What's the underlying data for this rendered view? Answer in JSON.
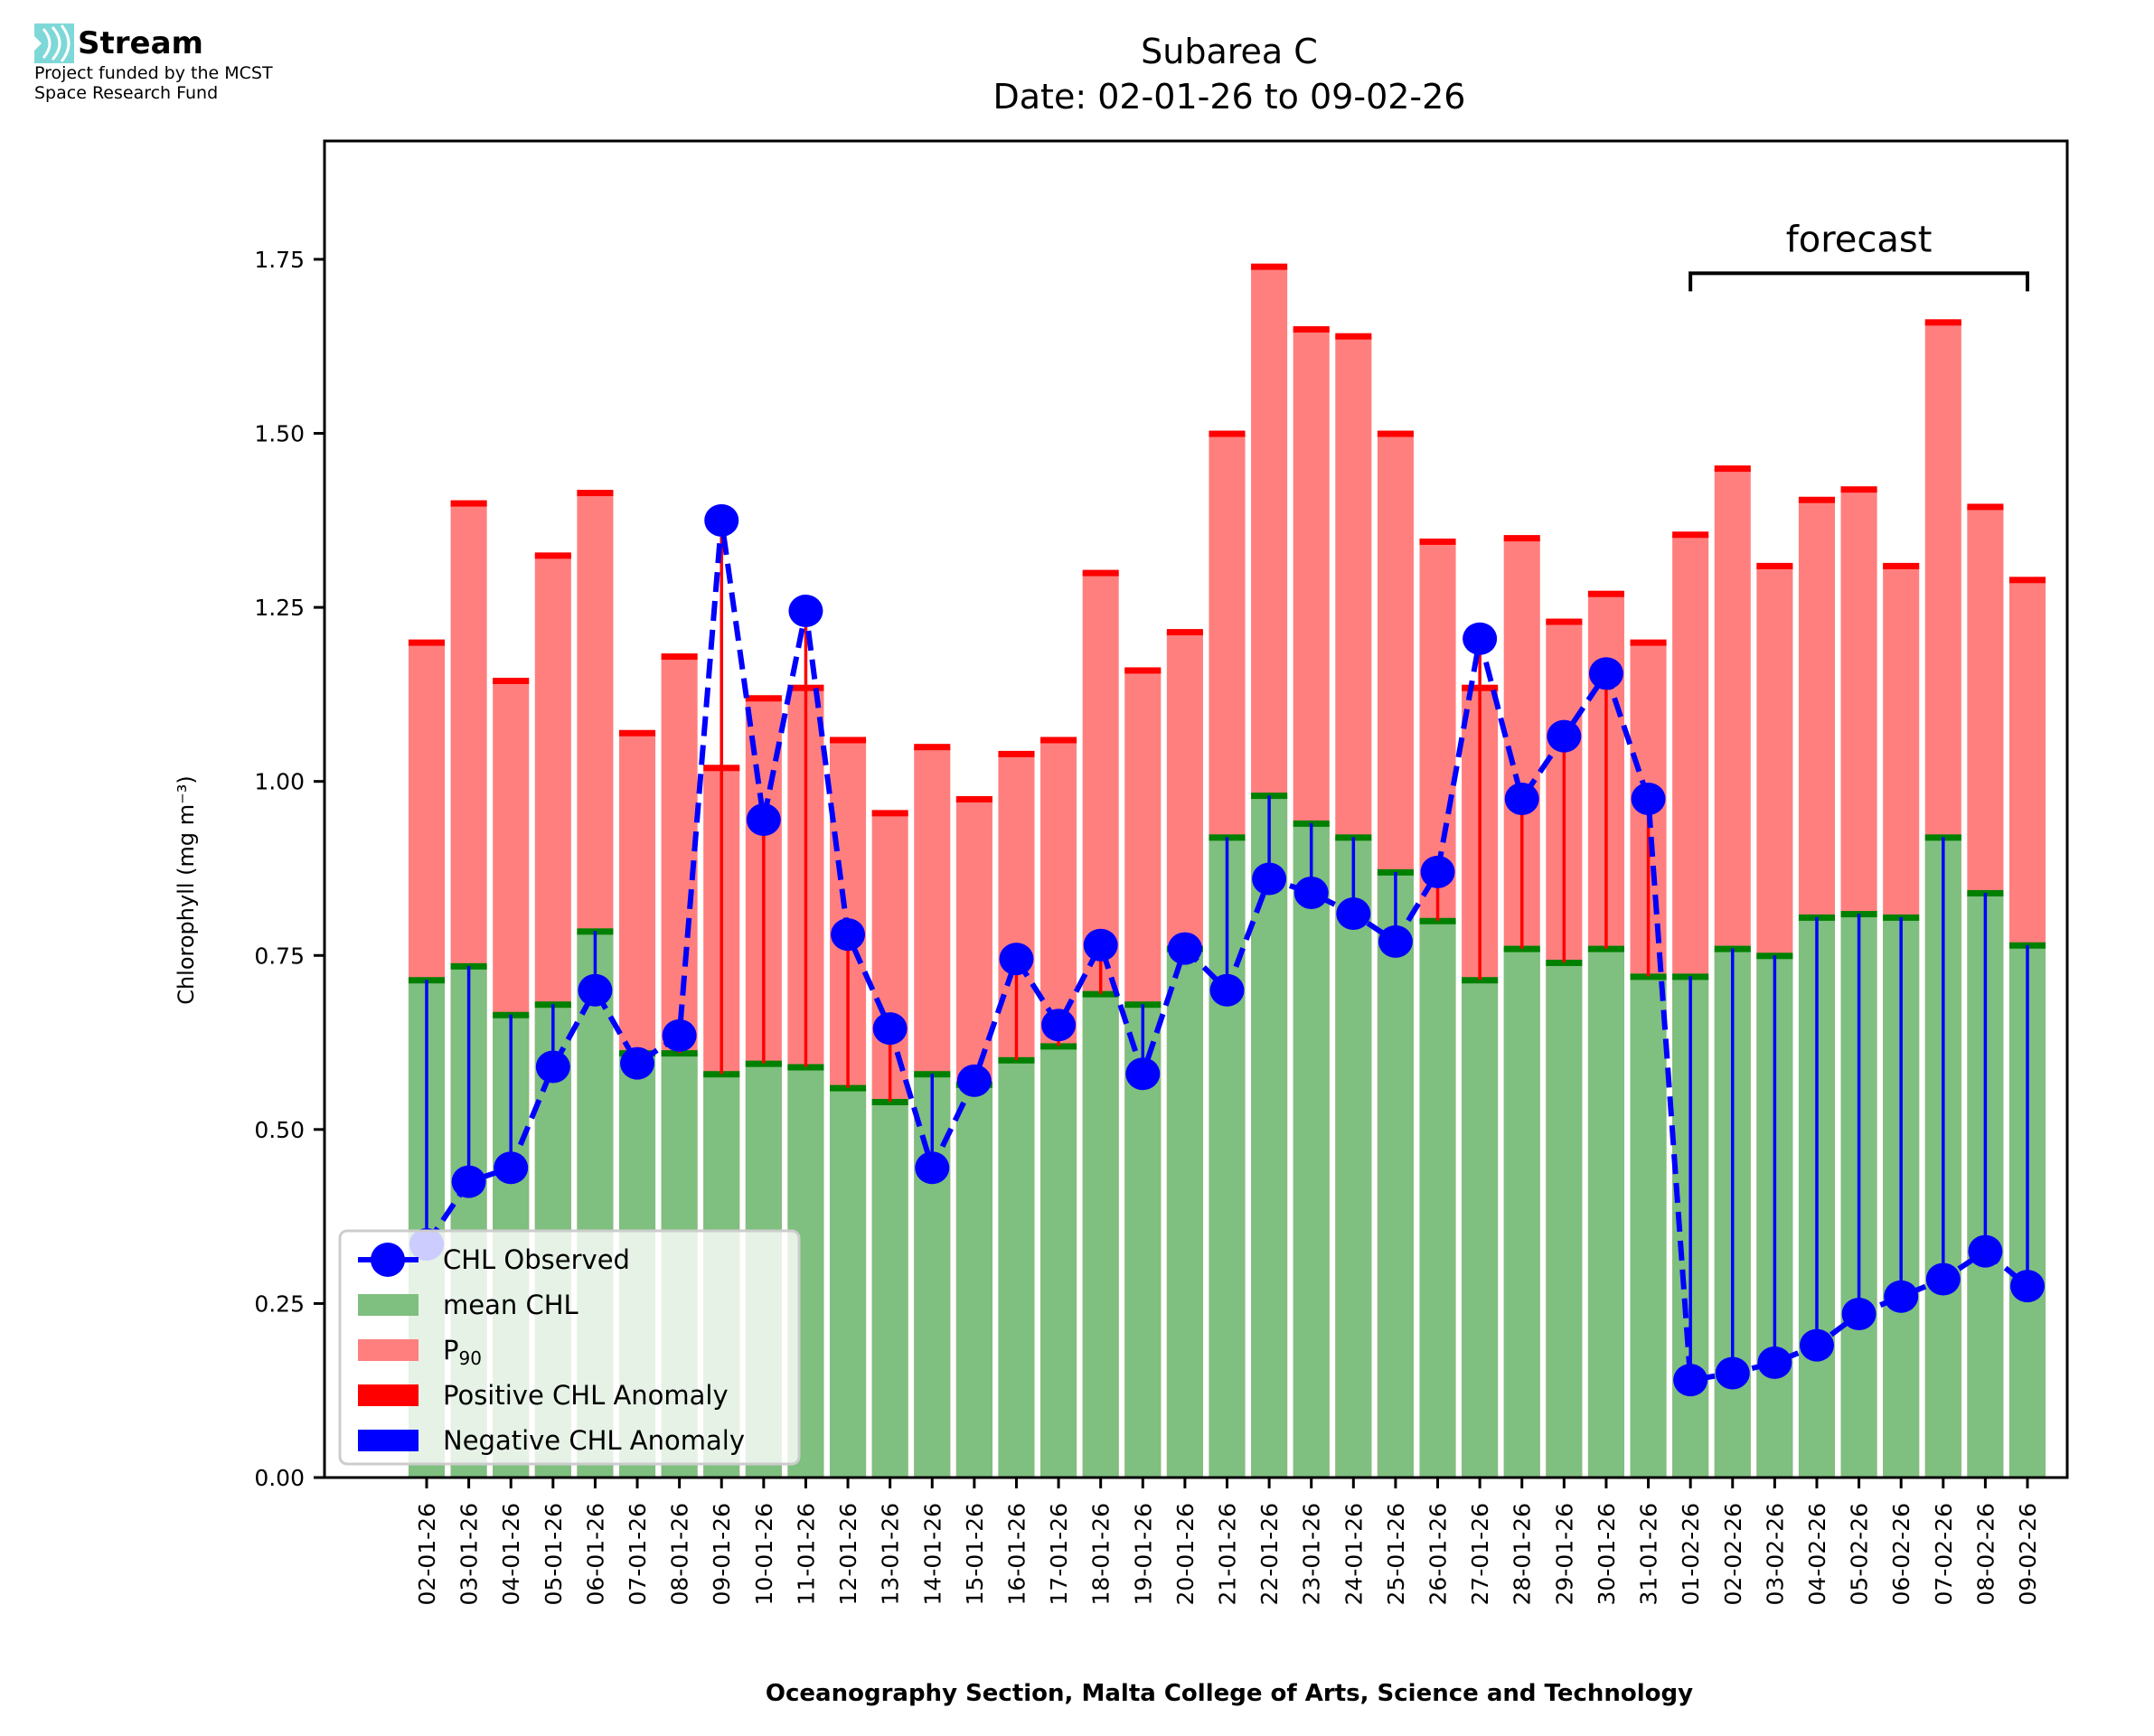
{
  "logo": {
    "brand": "Stream",
    "line1": "Project funded by the MCST",
    "line2": "Space Research Fund",
    "accent": "#7fd8d8"
  },
  "chart_data": {
    "type": "bar",
    "title": "Subarea C",
    "subtitle": "Date: 02-01-26 to 09-02-26",
    "xlabel": "Oceanography Section, Malta College of Arts, Science and Technology",
    "ylabel": "Chlorophyll (mg m⁻³)",
    "ylim": [
      0,
      1.92
    ],
    "yticks": [
      0.0,
      0.25,
      0.5,
      0.75,
      1.0,
      1.25,
      1.5,
      1.75
    ],
    "ytick_labels": [
      "0.00",
      "0.25",
      "0.50",
      "0.75",
      "1.00",
      "1.25",
      "1.50",
      "1.75"
    ],
    "grid": false,
    "categories": [
      "02-01-26",
      "03-01-26",
      "04-01-26",
      "05-01-26",
      "06-01-26",
      "07-01-26",
      "08-01-26",
      "09-01-26",
      "10-01-26",
      "11-01-26",
      "12-01-26",
      "13-01-26",
      "14-01-26",
      "15-01-26",
      "16-01-26",
      "17-01-26",
      "18-01-26",
      "19-01-26",
      "20-01-26",
      "21-01-26",
      "22-01-26",
      "23-01-26",
      "24-01-26",
      "25-01-26",
      "26-01-26",
      "27-01-26",
      "28-01-26",
      "29-01-26",
      "30-01-26",
      "31-01-26",
      "01-02-26",
      "02-02-26",
      "03-02-26",
      "04-02-26",
      "05-02-26",
      "06-02-26",
      "07-02-26",
      "08-02-26",
      "09-02-26"
    ],
    "series": [
      {
        "name": "mean CHL",
        "color": "#7fbf7f",
        "edge_color": "#008000",
        "values": [
          0.715,
          0.735,
          0.665,
          0.68,
          0.785,
          0.61,
          0.61,
          0.58,
          0.595,
          0.59,
          0.56,
          0.54,
          0.58,
          0.565,
          0.6,
          0.62,
          0.695,
          0.68,
          0.76,
          0.92,
          0.98,
          0.94,
          0.92,
          0.87,
          0.8,
          0.715,
          0.76,
          0.74,
          0.76,
          0.72,
          0.72,
          0.76,
          0.75,
          0.805,
          0.81,
          0.805,
          0.92,
          0.84,
          0.765
        ]
      },
      {
        "name": "P90",
        "color": "#ff7f7f",
        "edge_color": "#ff0000",
        "values": [
          1.2,
          1.4,
          1.145,
          1.325,
          1.415,
          1.07,
          1.18,
          1.02,
          1.12,
          1.135,
          1.06,
          0.955,
          1.05,
          0.975,
          1.04,
          1.06,
          1.3,
          1.16,
          1.215,
          1.5,
          1.74,
          1.65,
          1.64,
          1.5,
          1.345,
          1.135,
          1.35,
          1.23,
          1.27,
          1.2,
          1.355,
          1.45,
          1.31,
          1.405,
          1.42,
          1.31,
          1.66,
          1.395,
          1.29
        ]
      },
      {
        "name": "CHL Observed",
        "color": "#0000ff",
        "style": "dashed-line-with-markers",
        "values": [
          0.335,
          0.425,
          0.445,
          0.59,
          0.7,
          0.595,
          0.635,
          1.375,
          0.945,
          1.245,
          0.78,
          0.645,
          0.445,
          0.57,
          0.745,
          0.65,
          0.765,
          0.58,
          0.76,
          0.7,
          0.86,
          0.84,
          0.81,
          0.77,
          0.87,
          1.205,
          0.975,
          1.065,
          1.155,
          0.975,
          0.14,
          0.15,
          0.165,
          0.19,
          0.235,
          0.26,
          0.285,
          0.325,
          0.275
        ]
      }
    ],
    "anomaly_colors": {
      "positive": "#ff0000",
      "negative": "#0000ff"
    },
    "legend": {
      "position": "lower-left",
      "entries": [
        {
          "label": "CHL Observed",
          "kind": "line-marker",
          "color": "#0000ff"
        },
        {
          "label": "mean CHL",
          "kind": "patch",
          "color": "#7fbf7f"
        },
        {
          "label": "P",
          "sub": "90",
          "kind": "patch",
          "color": "#ff7f7f"
        },
        {
          "label": "Positive CHL Anomaly",
          "kind": "patch",
          "color": "#ff0000"
        },
        {
          "label": "Negative CHL Anomaly",
          "kind": "patch",
          "color": "#0000ff"
        }
      ]
    },
    "annotation": {
      "label": "forecast",
      "from": "01-02-26",
      "to": "09-02-26",
      "y": 1.73
    }
  }
}
